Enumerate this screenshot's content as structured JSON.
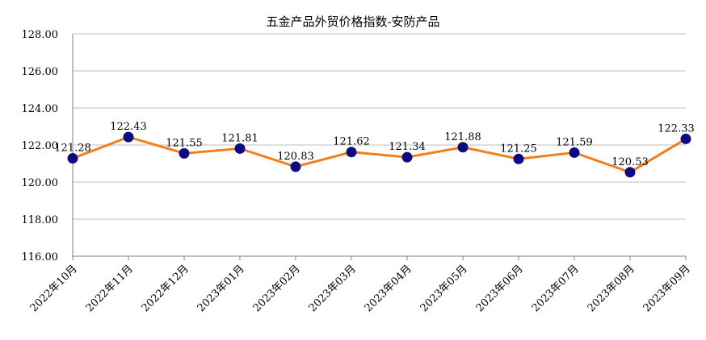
{
  "chart_data": {
    "type": "line",
    "title": "五金产品外贸价格指数-安防产品",
    "xlabel": "",
    "ylabel": "",
    "categories": [
      "2022年10月",
      "2022年11月",
      "2022年12月",
      "2023年01月",
      "2023年02月",
      "2023年03月",
      "2023年04月",
      "2023年05月",
      "2023年06月",
      "2023年07月",
      "2023年08月",
      "2023年09月"
    ],
    "series": [
      {
        "values": [
          121.28,
          122.43,
          121.55,
          121.81,
          120.83,
          121.62,
          121.34,
          121.88,
          121.25,
          121.59,
          120.53,
          122.33
        ]
      }
    ],
    "data_labels": [
      "121.28",
      "122.43",
      "121.55",
      "121.81",
      "120.83",
      "121.62",
      "121.34",
      "121.88",
      "121.25",
      "121.59",
      "120.53",
      "122.33"
    ],
    "y_tick_labels": [
      "116.00",
      "118.00",
      "120.00",
      "122.00",
      "124.00",
      "126.00",
      "128.00"
    ],
    "ylim": [
      116,
      128
    ],
    "grid": "horizontal",
    "legend": "none",
    "colors": {
      "line": "#f07f1e",
      "marker": "#0c0c80",
      "grid": "#bfbfbf",
      "axis": "#7f7f7f"
    }
  }
}
